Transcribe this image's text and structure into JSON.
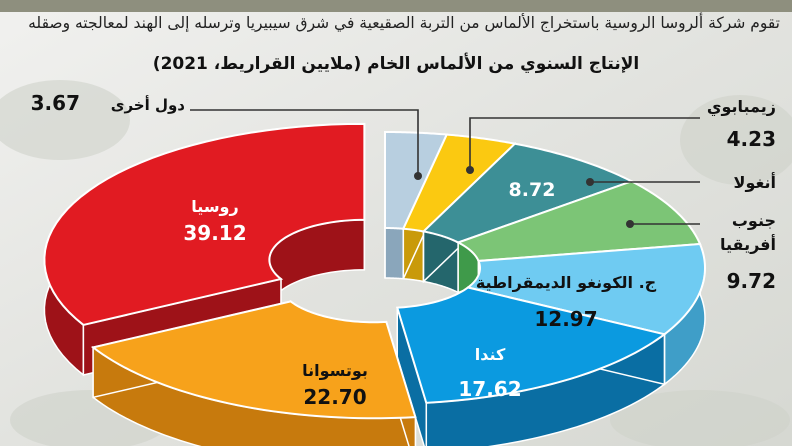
{
  "intro": "تقوم شركة ألروسا الروسية باستخراج الألماس من التربة الصقيعية في شرق سيبيريا وترسله إلى الهند لمعالجته وصقله",
  "chart_data": {
    "type": "pie",
    "title": "الإنتاج السنوي من الألماس الخام (ملايين القراريط، 2021)",
    "categories": [
      "روسيا",
      "بوتسوانا",
      "كندا",
      "ج. الكونغو الديمقراطية",
      "جنوب أفريقيا",
      "أنغولا",
      "زيمبابوي",
      "دول أخرى"
    ],
    "values": [
      39.12,
      22.7,
      17.62,
      12.97,
      9.72,
      8.72,
      4.23,
      3.67
    ],
    "value_labels": [
      "39.12",
      "22.70",
      "17.62",
      "12.97",
      "9.72",
      "8.72",
      "4.23",
      "3.67"
    ],
    "colors": [
      "#e11b22",
      "#f7a21b",
      "#0b9ae0",
      "#6fcbf2",
      "#7cc576",
      "#3d8f96",
      "#fbc911",
      "#b8cfe0"
    ],
    "side_colors": [
      "#9e1218",
      "#c77a0d",
      "#0a6ea3",
      "#3f9ec8",
      "#3f9a4a",
      "#24666c",
      "#c99a0a",
      "#8aa6bb"
    ],
    "exploded": [
      "روسيا",
      "بوتسوانا"
    ],
    "callouts": [
      "زيمبابوي",
      "أنغولا",
      "جنوب أفريقيا",
      "دول أخرى"
    ]
  }
}
